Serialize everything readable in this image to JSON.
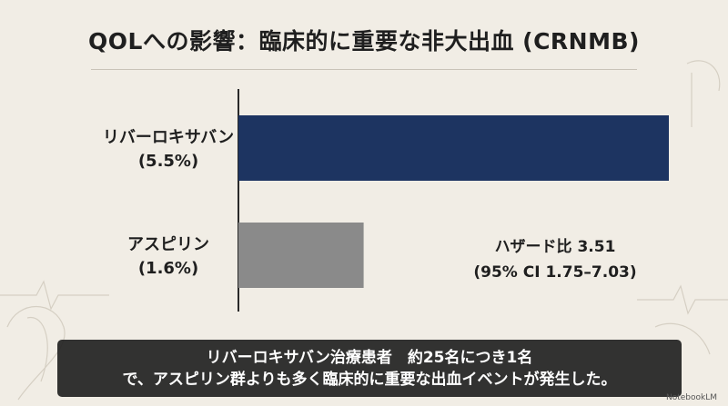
{
  "title": "QOLへの影響：臨床的に重要な非大出血 (CRNMB)",
  "chart_data": {
    "type": "bar",
    "orientation": "horizontal",
    "categories": [
      "リバーロキサバン",
      "アスピリン"
    ],
    "category_values_text": [
      "(5.5%)",
      "(1.6%)"
    ],
    "values": [
      5.5,
      1.6
    ],
    "unit": "%",
    "colors": [
      "#1d3461",
      "#8a8a8a"
    ],
    "xlim": [
      0,
      6
    ],
    "grid": false,
    "annotation": {
      "line1": "ハザード比 3.51",
      "line2": "(95% CI 1.75–7.03)"
    }
  },
  "caption": {
    "line1": "リバーロキサバン治療患者　約25名につき1名",
    "line2": "で、アスピリン群よりも多く臨床的に重要な出血イベントが発生した。"
  },
  "brand": "NotebookLM"
}
